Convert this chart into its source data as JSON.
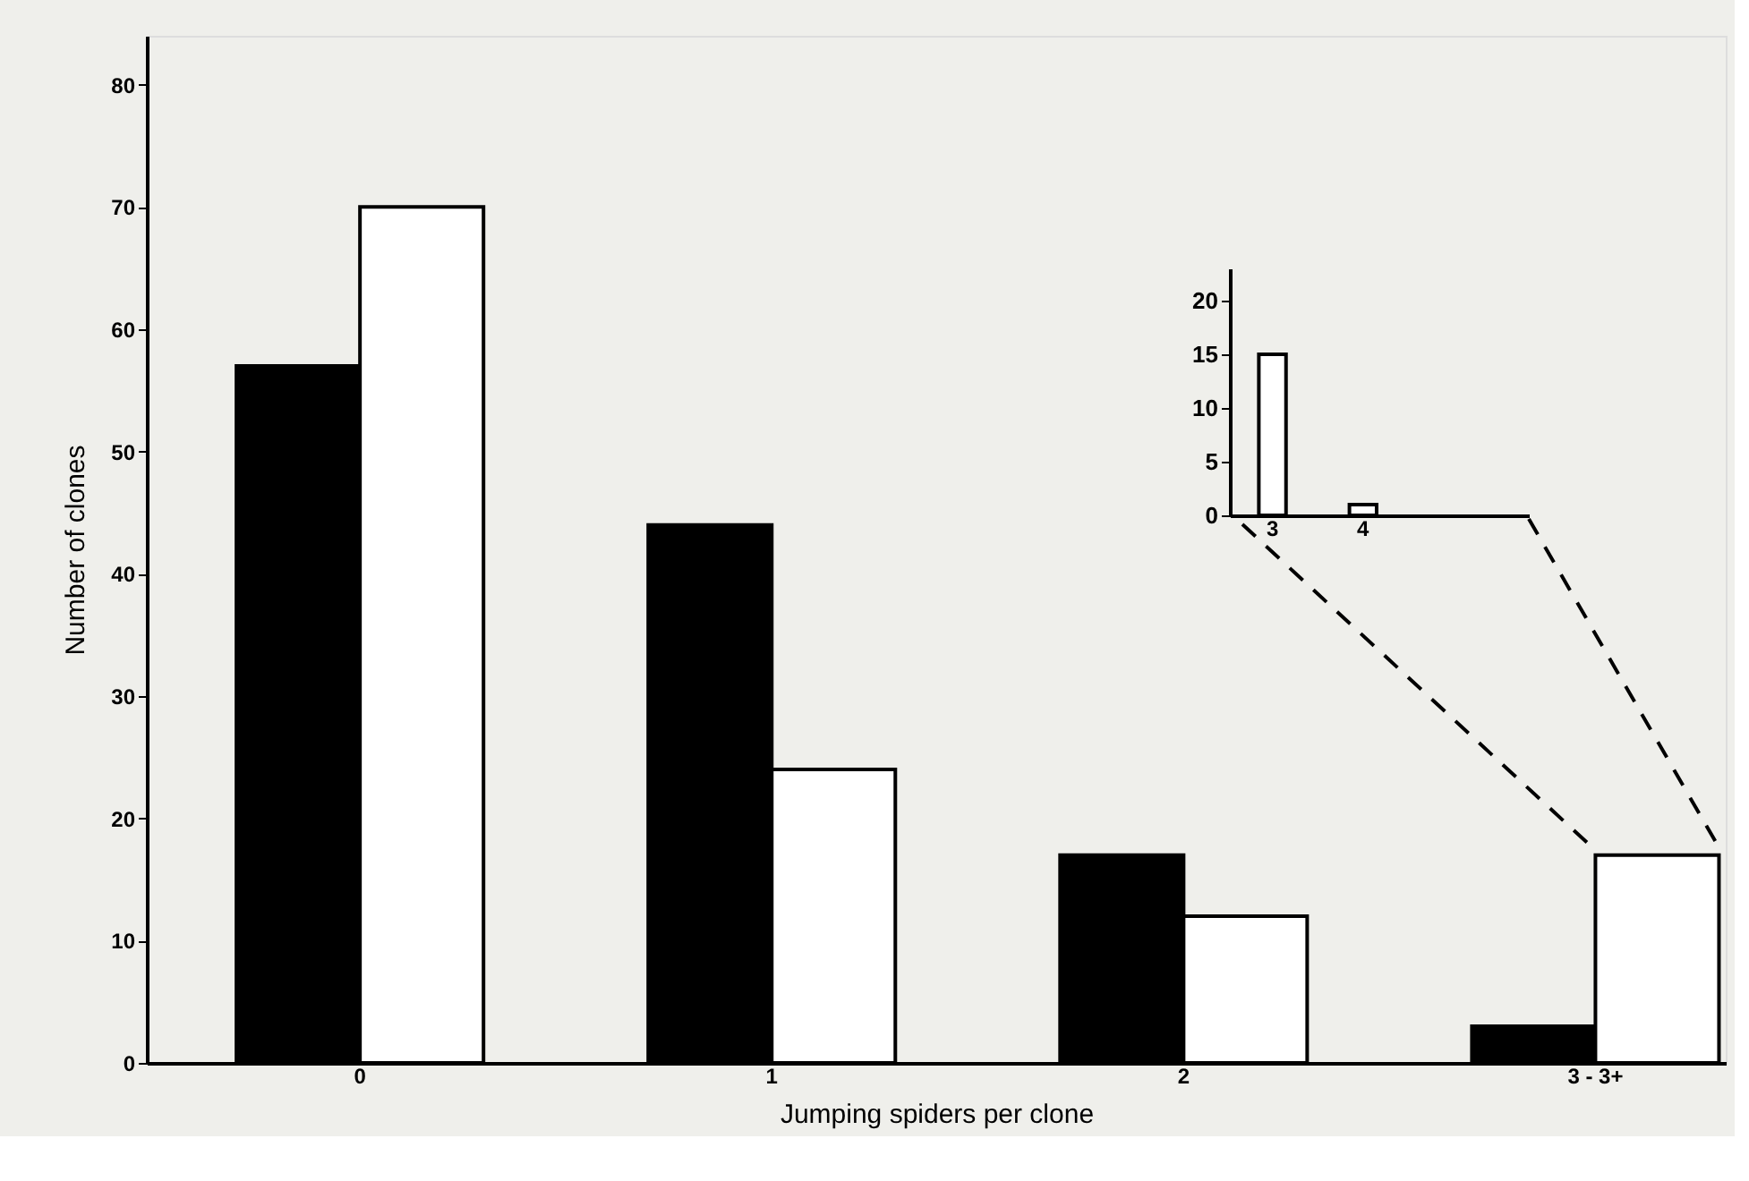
{
  "chart_data": [
    {
      "type": "bar",
      "xlabel": "Jumping spiders per clone",
      "ylabel": "Number of clones",
      "categories": [
        "0",
        "1",
        "2",
        "3 - 3+"
      ],
      "series": [
        {
          "color": "#000000",
          "values": [
            57,
            44,
            17,
            3
          ]
        },
        {
          "color": "#ffffff",
          "values": [
            70,
            24,
            12,
            17
          ]
        }
      ],
      "ylim": [
        0,
        84
      ],
      "yticks": [
        0,
        10,
        20,
        30,
        40,
        50,
        60,
        70,
        80
      ],
      "grid": false,
      "legend": false
    },
    {
      "type": "bar",
      "categories": [
        "3",
        "4"
      ],
      "series": [
        {
          "color": "#ffffff",
          "values": [
            15,
            1
          ]
        }
      ],
      "ylim": [
        0,
        23
      ],
      "yticks": [
        0,
        5,
        10,
        15,
        20
      ],
      "grid": false,
      "legend": false
    }
  ]
}
